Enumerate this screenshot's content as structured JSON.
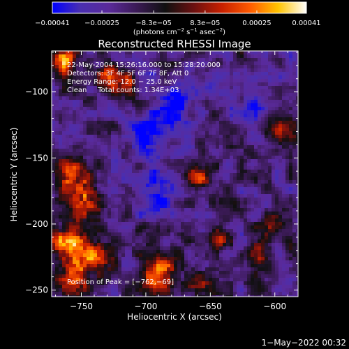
{
  "chart_data": {
    "type": "heatmap",
    "title": "Reconstructed RHESSI Image",
    "xlabel": "Heliocentric X (arcsec)",
    "ylabel": "Heliocentric Y (arcsec)",
    "xlim": [
      -773,
      -582
    ],
    "ylim": [
      -255,
      -69
    ],
    "x_ticks": [
      -750,
      -700,
      -650,
      -600
    ],
    "x_tick_labels": [
      "−750",
      "−700",
      "−650",
      "−600"
    ],
    "y_ticks": [
      -100,
      -150,
      -200,
      -250
    ],
    "y_tick_labels": [
      "−100",
      "−150",
      "−200",
      "−250"
    ],
    "colorbar": {
      "range": [
        -0.00041,
        0.00041
      ],
      "ticks": [
        -0.00041,
        -0.00025,
        -8.3e-05,
        8.3e-05,
        0.00025,
        0.00041
      ],
      "tick_labels": [
        "−0.00041",
        "−0.00025",
        "−8.3e−05",
        "8.3e−05",
        "0.00025",
        "0.00041"
      ],
      "units_prefix": "(photons cm",
      "units_exp1": "−2",
      "units_mid1": " s",
      "units_exp2": "−1",
      "units_mid2": " asec",
      "units_exp3": "−2",
      "units_suffix": ")",
      "colors": [
        "#0000ff",
        "#4a2fb0",
        "#5a2a9a",
        "#3a1a55",
        "#101010",
        "#6a1010",
        "#c82000",
        "#ff5a00",
        "#ffc400",
        "#ffffff"
      ]
    },
    "annotations": [
      "22-May-2004 15:26:16.000 to 15:28:20.000",
      "Detectors: 3F 4F 5F 6F 7F 8F, Att 0",
      "Energy Range: 12.0 − 25.0 keV",
      "Clean     Total counts: 1.34E+03"
    ],
    "peak_label": "Position of Peak = [−762,−69]",
    "peak_position": [
      -762,
      -69
    ],
    "grid": false,
    "legend": "colorbar-top"
  },
  "footer": {
    "timestamp": "1−May−2022 00:32"
  }
}
